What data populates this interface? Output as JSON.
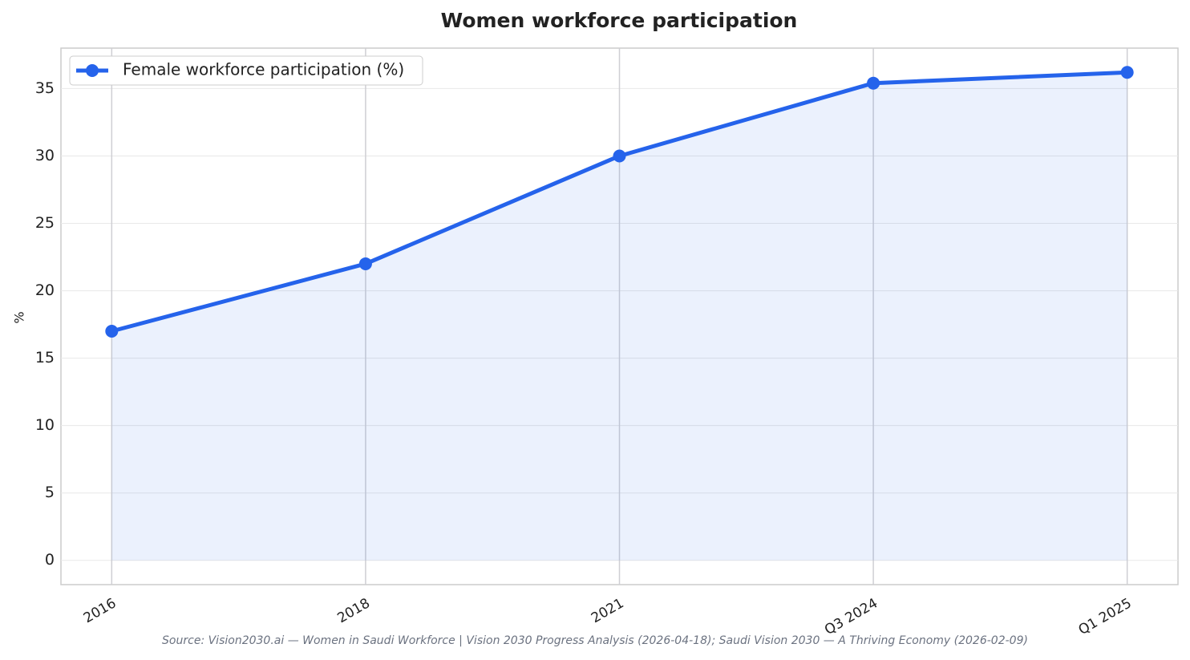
{
  "chart_data": {
    "type": "line",
    "title": "Women workforce participation",
    "ylabel": "%",
    "source": "Source: Vision2030.ai — Women in Saudi Workforce | Vision 2030 Progress Analysis (2026-04-18); Saudi Vision 2030 — A Thriving Economy (2026-02-09)",
    "categories": [
      "2016",
      "2018",
      "2021",
      "Q3 2024",
      "Q1 2025"
    ],
    "series": [
      {
        "name": "Female workforce participation (%)",
        "color": "#2563eb",
        "values": [
          17,
          22,
          30,
          35.4,
          36.2
        ]
      }
    ],
    "ylim": [
      -1.8,
      38.0
    ],
    "yticks": [
      0,
      5,
      10,
      15,
      20,
      25,
      30,
      35
    ],
    "grid": true,
    "fill": true,
    "legend": "upper left"
  }
}
